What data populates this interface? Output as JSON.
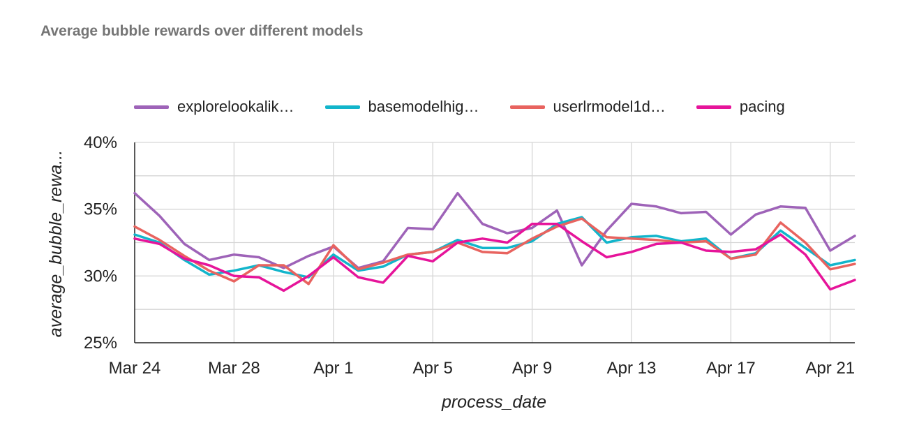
{
  "chart_data": {
    "type": "line",
    "title": "Average bubble rewards over different models",
    "xlabel": "process_date",
    "ylabel": "average_bubble_rewa...",
    "ylim": [
      25,
      40
    ],
    "yticks": [
      25,
      30,
      35,
      40
    ],
    "ytick_labels": [
      "25%",
      "30%",
      "35%",
      "40%"
    ],
    "xtick_labels": [
      "Mar 24",
      "Mar 28",
      "Apr 1",
      "Apr 5",
      "Apr 9",
      "Apr 13",
      "Apr 17",
      "Apr 21"
    ],
    "grid": true,
    "legend_position": "top",
    "x": [
      "Mar 24",
      "Mar 25",
      "Mar 26",
      "Mar 27",
      "Mar 28",
      "Mar 29",
      "Mar 30",
      "Mar 31",
      "Apr 1",
      "Apr 2",
      "Apr 3",
      "Apr 4",
      "Apr 5",
      "Apr 6",
      "Apr 7",
      "Apr 8",
      "Apr 9",
      "Apr 10",
      "Apr 11",
      "Apr 12",
      "Apr 13",
      "Apr 14",
      "Apr 15",
      "Apr 16",
      "Apr 17",
      "Apr 18",
      "Apr 19",
      "Apr 20",
      "Apr 21",
      "Apr 22"
    ],
    "series": [
      {
        "name": "explorelookalik…",
        "color": "#9E63B8",
        "values": [
          36.2,
          34.5,
          32.4,
          31.2,
          31.6,
          31.4,
          30.6,
          31.5,
          32.2,
          30.6,
          31.1,
          33.6,
          33.5,
          36.2,
          33.9,
          33.2,
          33.6,
          34.9,
          30.8,
          33.4,
          35.4,
          35.2,
          34.7,
          34.8,
          33.1,
          34.6,
          35.2,
          35.1,
          31.9,
          33.0
        ]
      },
      {
        "name": "basemodelhig…",
        "color": "#12B5CB",
        "values": [
          33.1,
          32.5,
          31.2,
          30.1,
          30.4,
          30.8,
          30.3,
          29.9,
          31.6,
          30.4,
          30.7,
          31.6,
          31.8,
          32.7,
          32.1,
          32.1,
          32.6,
          33.9,
          34.4,
          32.5,
          32.9,
          33.0,
          32.6,
          32.8,
          31.3,
          31.7,
          33.4,
          32.1,
          30.8,
          31.2
        ]
      },
      {
        "name": "userlrmodel1d…",
        "color": "#E8635F",
        "values": [
          33.7,
          32.7,
          31.5,
          30.4,
          29.6,
          30.8,
          30.8,
          29.4,
          32.3,
          30.5,
          31.0,
          31.6,
          31.8,
          32.5,
          31.8,
          31.7,
          32.8,
          33.7,
          34.3,
          32.9,
          32.8,
          32.7,
          32.5,
          32.6,
          31.3,
          31.6,
          34.0,
          32.5,
          30.5,
          30.9
        ]
      },
      {
        "name": "pacing",
        "color": "#E6149A",
        "values": [
          32.8,
          32.4,
          31.3,
          30.8,
          30.0,
          29.9,
          28.9,
          30.0,
          31.4,
          29.9,
          29.5,
          31.5,
          31.1,
          32.5,
          32.8,
          32.5,
          33.9,
          33.9,
          32.6,
          31.4,
          31.8,
          32.4,
          32.5,
          31.9,
          31.8,
          32.0,
          33.1,
          31.6,
          29.0,
          29.7
        ]
      }
    ]
  }
}
